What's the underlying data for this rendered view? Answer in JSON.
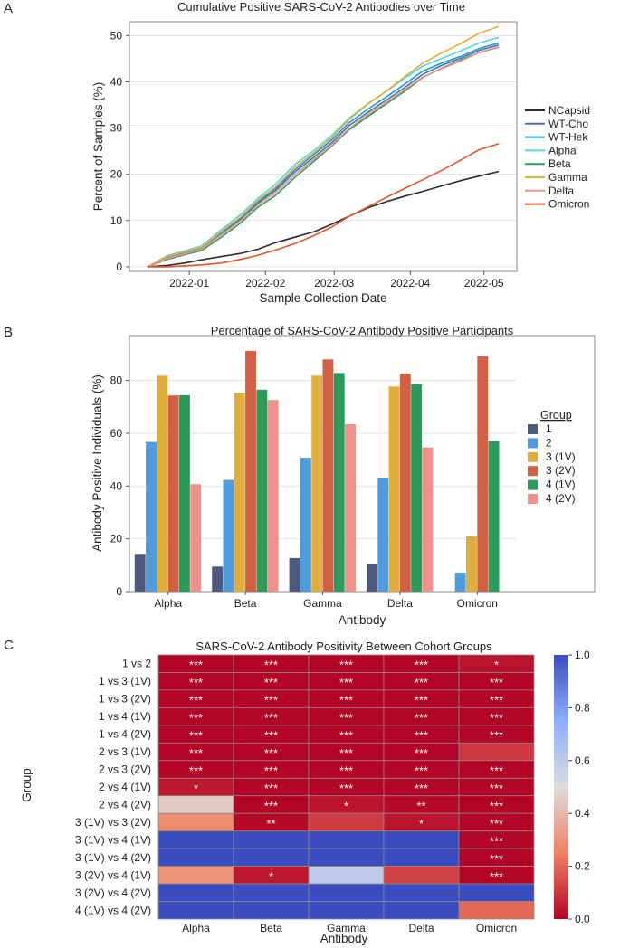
{
  "chart_data": [
    {
      "panel": "A",
      "type": "line",
      "title": "Cumulative Positive SARS-CoV-2 Antibodies over Time",
      "xlabel": "Sample Collection Date",
      "ylabel": "Percent of Samples (%)",
      "x_ticks": [
        "2022-01",
        "2022-02",
        "2022-03",
        "2022-04",
        "2022-05"
      ],
      "y_ticks": [
        0,
        10,
        20,
        30,
        40,
        50
      ],
      "ylim": [
        -1,
        53
      ],
      "x_domain_days": [
        0,
        143
      ],
      "x_tick_days": [
        17,
        48,
        76,
        107,
        137
      ],
      "series": [
        {
          "name": "NCapsid",
          "color": "#2b2b2b",
          "x": [
            0,
            8,
            15,
            22,
            30,
            38,
            45,
            52,
            60,
            68,
            75,
            82,
            90,
            98,
            105,
            112,
            120,
            128,
            135,
            143
          ],
          "y": [
            0,
            0.3,
            0.8,
            1.5,
            2.2,
            2.9,
            3.8,
            5.2,
            6.4,
            7.6,
            9.2,
            10.9,
            12.8,
            14.2,
            15.3,
            16.3,
            17.5,
            18.7,
            19.6,
            20.6
          ]
        },
        {
          "name": "WT-Cho",
          "color": "#4a6fa5",
          "x": [
            0,
            8,
            15,
            22,
            30,
            38,
            45,
            52,
            60,
            68,
            75,
            82,
            90,
            98,
            105,
            112,
            120,
            128,
            135,
            143
          ],
          "y": [
            0,
            2.0,
            3.0,
            4.0,
            7.2,
            10.3,
            13.8,
            16.5,
            20.5,
            23.8,
            26.8,
            30.5,
            33.5,
            36.3,
            38.9,
            41.6,
            43.6,
            45.2,
            46.8,
            48.0
          ]
        },
        {
          "name": "WT-Hek",
          "color": "#1f97d4",
          "x": [
            0,
            8,
            15,
            22,
            30,
            38,
            45,
            52,
            60,
            68,
            75,
            82,
            90,
            98,
            105,
            112,
            120,
            128,
            135,
            143
          ],
          "y": [
            0,
            2.1,
            3.1,
            4.1,
            7.4,
            10.6,
            14.1,
            16.9,
            21.0,
            24.4,
            27.4,
            31.1,
            34.2,
            37.0,
            39.6,
            42.3,
            44.1,
            45.6,
            47.2,
            48.4
          ]
        },
        {
          "name": "Alpha",
          "color": "#55d4ec",
          "x": [
            0,
            8,
            15,
            22,
            30,
            38,
            45,
            52,
            60,
            68,
            75,
            82,
            90,
            98,
            105,
            112,
            120,
            128,
            135,
            143
          ],
          "y": [
            0,
            2.4,
            3.4,
            4.5,
            8.0,
            11.3,
            14.8,
            17.8,
            22.1,
            25.3,
            28.4,
            32.1,
            35.4,
            38.2,
            40.9,
            43.4,
            45.1,
            46.8,
            48.4,
            49.6
          ]
        },
        {
          "name": "Beta",
          "color": "#2aa05a",
          "x": [
            0,
            8,
            15,
            22,
            30,
            38,
            45,
            52,
            60,
            68,
            75,
            82,
            90,
            98,
            105,
            112,
            120,
            128,
            135,
            143
          ],
          "y": [
            0,
            1.6,
            2.6,
            3.5,
            6.4,
            9.5,
            12.9,
            15.4,
            19.3,
            22.9,
            26.1,
            29.6,
            32.6,
            35.5,
            38.1,
            40.9,
            43.0,
            44.8,
            46.3,
            47.5
          ]
        },
        {
          "name": "Gamma",
          "color": "#e8ad2f",
          "x": [
            0,
            8,
            15,
            22,
            30,
            38,
            45,
            52,
            60,
            68,
            75,
            82,
            90,
            98,
            105,
            112,
            120,
            128,
            135,
            143
          ],
          "y": [
            0,
            2.2,
            3.2,
            4.2,
            7.6,
            10.8,
            14.4,
            17.2,
            21.5,
            24.8,
            27.9,
            31.8,
            35.3,
            38.3,
            41.2,
            44.0,
            46.3,
            48.4,
            50.5,
            52.0
          ]
        },
        {
          "name": "Delta",
          "color": "#f0908c",
          "x": [
            0,
            8,
            15,
            22,
            30,
            38,
            45,
            52,
            60,
            68,
            75,
            82,
            90,
            98,
            105,
            112,
            120,
            128,
            135,
            143
          ],
          "y": [
            0,
            1.8,
            2.8,
            3.8,
            6.9,
            10.0,
            13.4,
            16.0,
            19.9,
            23.3,
            26.3,
            29.9,
            33.0,
            35.8,
            38.4,
            41.0,
            42.9,
            44.6,
            46.3,
            47.6
          ]
        },
        {
          "name": "Omicron",
          "color": "#e4542b",
          "x": [
            0,
            8,
            15,
            22,
            30,
            38,
            45,
            52,
            60,
            68,
            75,
            82,
            90,
            98,
            105,
            112,
            120,
            128,
            135,
            143
          ],
          "y": [
            0,
            0,
            0.2,
            0.4,
            0.8,
            1.6,
            2.5,
            3.6,
            5.0,
            6.8,
            8.6,
            10.9,
            13.0,
            15.2,
            17.0,
            18.8,
            20.9,
            23.2,
            25.3,
            26.6
          ]
        }
      ]
    },
    {
      "panel": "B",
      "type": "bar",
      "title": "Percentage of SARS-CoV-2 Antibody Positive Participants",
      "xlabel": "Antibody",
      "ylabel": "Antibody Positive Individuals (%)",
      "categories": [
        "Alpha",
        "Beta",
        "Gamma",
        "Delta",
        "Omicron"
      ],
      "y_ticks": [
        0,
        20,
        40,
        60,
        80
      ],
      "ylim": [
        0,
        97
      ],
      "legend_title": "Group",
      "series": [
        {
          "name": "1",
          "color": "#4b5a7e",
          "values": [
            14.3,
            9.5,
            12.7,
            10.3,
            0
          ]
        },
        {
          "name": "2",
          "color": "#4f9bdb",
          "values": [
            56.7,
            42.3,
            50.7,
            43.2,
            7.2
          ]
        },
        {
          "name": "3 (1V)",
          "color": "#dfac3e",
          "values": [
            81.8,
            75.3,
            81.8,
            77.7,
            21.0
          ]
        },
        {
          "name": "3 (2V)",
          "color": "#d35f45",
          "values": [
            74.3,
            91.2,
            88.0,
            82.6,
            89.2
          ]
        },
        {
          "name": "4 (1V)",
          "color": "#2b9a5a",
          "values": [
            74.4,
            76.5,
            82.8,
            78.6,
            57.2
          ]
        },
        {
          "name": "4 (2V)",
          "color": "#f0928a",
          "values": [
            40.7,
            72.6,
            63.4,
            54.6,
            0
          ]
        }
      ]
    },
    {
      "panel": "C",
      "type": "heatmap",
      "title": "SARS-CoV-2 Antibody Positivity Between Cohort Groups",
      "xlabel": "Antibody",
      "ylabel": "Group",
      "columns": [
        "Alpha",
        "Beta",
        "Gamma",
        "Delta",
        "Omicron"
      ],
      "rows": [
        "1 vs 2",
        "1 vs 3 (1V)",
        "1 vs 3 (2V)",
        "1 vs 4 (1V)",
        "1 vs 4 (2V)",
        "2 vs 3 (1V)",
        "2 vs 3 (2V)",
        "2 vs 4 (1V)",
        "2 vs 4 (2V)",
        "3 (1V) vs 3 (2V)",
        "3 (1V) vs 4 (1V)",
        "3 (1V) vs 4 (2V)",
        "3 (2V) vs 4 (1V)",
        "3 (2V) vs 4 (2V)",
        "4 (1V) vs 4 (2V)"
      ],
      "values": [
        [
          0.0,
          0.0,
          0.0,
          0.0,
          0.03
        ],
        [
          0.0,
          0.0,
          0.0,
          0.0,
          0.0
        ],
        [
          0.0,
          0.0,
          0.0,
          0.0,
          0.0
        ],
        [
          0.0,
          0.0,
          0.0,
          0.0,
          0.0
        ],
        [
          0.0,
          0.0,
          0.0,
          0.0,
          0.0
        ],
        [
          0.0,
          0.0,
          0.0,
          0.0,
          0.1
        ],
        [
          0.0,
          0.0,
          0.0,
          0.0,
          0.0
        ],
        [
          0.04,
          0.0,
          0.0,
          0.0,
          0.0
        ],
        [
          0.45,
          0.0,
          0.03,
          0.01,
          0.0
        ],
        [
          0.28,
          0.01,
          0.11,
          0.03,
          0.0
        ],
        [
          1.0,
          1.0,
          1.0,
          1.0,
          0.0
        ],
        [
          1.0,
          1.0,
          1.0,
          1.0,
          0.0
        ],
        [
          0.3,
          0.04,
          0.6,
          0.12,
          0.0
        ],
        [
          1.0,
          1.0,
          1.0,
          1.0,
          1.0
        ],
        [
          1.0,
          1.0,
          1.0,
          1.0,
          0.2
        ]
      ],
      "annotations": [
        [
          "***",
          "***",
          "***",
          "***",
          "*"
        ],
        [
          "***",
          "***",
          "***",
          "***",
          "***"
        ],
        [
          "***",
          "***",
          "***",
          "***",
          "***"
        ],
        [
          "***",
          "***",
          "***",
          "***",
          "***"
        ],
        [
          "***",
          "***",
          "***",
          "***",
          "***"
        ],
        [
          "***",
          "***",
          "***",
          "***",
          ""
        ],
        [
          "***",
          "***",
          "***",
          "***",
          "***"
        ],
        [
          "*",
          "***",
          "***",
          "***",
          "***"
        ],
        [
          "",
          "***",
          "*",
          "**",
          "***"
        ],
        [
          "",
          "**",
          "",
          "*",
          "***"
        ],
        [
          "",
          "",
          "",
          "",
          "***"
        ],
        [
          "",
          "",
          "",
          "",
          "***"
        ],
        [
          "",
          "*",
          "",
          "",
          "***"
        ],
        [
          "",
          "",
          "",
          "",
          ""
        ],
        [
          "",
          "",
          "",
          "",
          ""
        ]
      ],
      "colorbar": {
        "ticks": [
          0.0,
          0.2,
          0.4,
          0.6,
          0.8,
          1.0
        ],
        "labels": [
          "0.0",
          "0.2",
          "0.4",
          "0.6",
          "0.8",
          "1.0"
        ],
        "range": [
          0,
          1
        ]
      }
    }
  ],
  "panel_labels": [
    "A",
    "B",
    "C"
  ]
}
